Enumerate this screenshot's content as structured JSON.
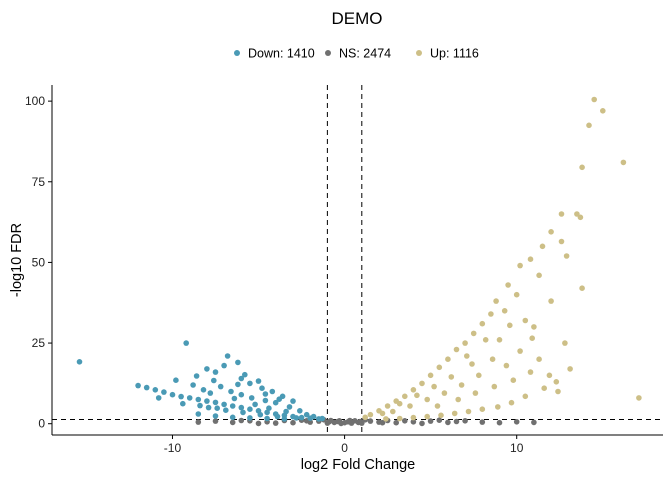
{
  "chart_data": {
    "type": "scatter",
    "title": "DEMO",
    "xlabel": "log2 Fold Change",
    "ylabel": "-log10 FDR",
    "xlim": [
      -17,
      18.5
    ],
    "ylim": [
      -3.5,
      105
    ],
    "x_ticks": [
      -10,
      0,
      10
    ],
    "y_ticks": [
      0,
      25,
      50,
      75,
      100
    ],
    "grid": false,
    "legend_position": "top",
    "thresholds": {
      "vertical": [
        -1,
        1
      ],
      "horizontal": 1.3
    },
    "legend": [
      {
        "label": "Down: 1410",
        "color": "#4a9ab5"
      },
      {
        "label": "NS: 2474",
        "color": "#707070"
      },
      {
        "label": "Up: 1116",
        "color": "#cdbf87"
      }
    ],
    "series": [
      {
        "name": "Down: 1410",
        "color": "#4a9ab5",
        "points": [
          [
            -15.4,
            19.2
          ],
          [
            -12.0,
            11.8
          ],
          [
            -11.5,
            11.2
          ],
          [
            -11.0,
            10.5
          ],
          [
            -10.5,
            9.8
          ],
          [
            -10.0,
            9.0
          ],
          [
            -9.5,
            8.4
          ],
          [
            -9.0,
            8.0
          ],
          [
            -8.5,
            7.5
          ],
          [
            -8.0,
            7.0
          ],
          [
            -7.5,
            6.6
          ],
          [
            -7.0,
            6.0
          ],
          [
            -6.5,
            5.5
          ],
          [
            -6.0,
            5.0
          ],
          [
            -5.5,
            4.5
          ],
          [
            -5.0,
            4.0
          ],
          [
            -4.5,
            3.5
          ],
          [
            -4.0,
            3.0
          ],
          [
            -3.5,
            2.6
          ],
          [
            -3.0,
            2.2
          ],
          [
            -2.5,
            1.9
          ],
          [
            -2.0,
            1.7
          ],
          [
            -1.5,
            1.5
          ],
          [
            -9.2,
            25.0
          ],
          [
            -8.0,
            17.0
          ],
          [
            -7.0,
            18.0
          ],
          [
            -6.8,
            21.0
          ],
          [
            -6.2,
            19.0
          ],
          [
            -7.5,
            16.0
          ],
          [
            -6.0,
            14.0
          ],
          [
            -5.5,
            12.5
          ],
          [
            -4.8,
            11.0
          ],
          [
            -4.2,
            10.0
          ],
          [
            -3.6,
            8.5
          ],
          [
            -3.0,
            7.0
          ],
          [
            -9.8,
            13.5
          ],
          [
            -8.8,
            12.0
          ],
          [
            -8.2,
            10.5
          ],
          [
            -7.8,
            9.5
          ],
          [
            -7.2,
            11.5
          ],
          [
            -6.6,
            10.0
          ],
          [
            -6.0,
            9.0
          ],
          [
            -5.4,
            8.0
          ],
          [
            -4.6,
            7.2
          ],
          [
            -4.0,
            6.5
          ],
          [
            -3.2,
            5.2
          ],
          [
            -2.6,
            4.0
          ],
          [
            -8.5,
            3.0
          ],
          [
            -7.5,
            2.4
          ],
          [
            -6.5,
            2.0
          ],
          [
            -5.5,
            1.8
          ],
          [
            -4.5,
            1.6
          ],
          [
            -3.5,
            1.5
          ],
          [
            -7.9,
            5.0
          ],
          [
            -6.9,
            4.2
          ],
          [
            -5.9,
            3.5
          ],
          [
            -4.9,
            2.8
          ],
          [
            -3.9,
            2.2
          ],
          [
            -2.8,
            1.8
          ],
          [
            -10.8,
            8.0
          ],
          [
            -9.4,
            6.2
          ],
          [
            -8.4,
            5.6
          ],
          [
            -7.4,
            4.8
          ],
          [
            -6.4,
            7.8
          ],
          [
            -5.2,
            6.0
          ],
          [
            -4.4,
            4.8
          ],
          [
            -3.4,
            3.8
          ],
          [
            -2.2,
            2.8
          ],
          [
            -1.8,
            2.2
          ],
          [
            -1.3,
            1.6
          ],
          [
            -6.2,
            12.2
          ],
          [
            -5.8,
            15.2
          ],
          [
            -5.0,
            13.2
          ],
          [
            -4.6,
            9.2
          ],
          [
            -3.8,
            7.6
          ],
          [
            -7.6,
            13.4
          ],
          [
            -8.6,
            14.8
          ]
        ]
      },
      {
        "name": "NS: 2474",
        "color": "#707070",
        "points": [
          [
            -8.5,
            0.5
          ],
          [
            -7.5,
            0.8
          ],
          [
            -6.5,
            0.4
          ],
          [
            -5.5,
            0.9
          ],
          [
            -4.5,
            0.6
          ],
          [
            -3.5,
            1.0
          ],
          [
            -3.0,
            0.3
          ],
          [
            -2.5,
            1.1
          ],
          [
            -2.0,
            0.5
          ],
          [
            -1.5,
            0.8
          ],
          [
            -1.0,
            0.2
          ],
          [
            -0.8,
            1.0
          ],
          [
            -0.6,
            0.4
          ],
          [
            -0.4,
            0.7
          ],
          [
            -0.2,
            0.1
          ],
          [
            0.0,
            0.3
          ],
          [
            0.2,
            0.6
          ],
          [
            0.4,
            0.2
          ],
          [
            0.6,
            0.9
          ],
          [
            0.8,
            0.4
          ],
          [
            1.0,
            0.2
          ],
          [
            1.5,
            0.8
          ],
          [
            2.0,
            0.5
          ],
          [
            2.5,
            1.0
          ],
          [
            3.0,
            0.3
          ],
          [
            3.5,
            0.9
          ],
          [
            4.0,
            0.6
          ],
          [
            5.0,
            0.8
          ],
          [
            6.0,
            0.4
          ],
          [
            7.0,
            0.9
          ],
          [
            8.0,
            0.5
          ],
          [
            9.0,
            0.3
          ],
          [
            10.0,
            0.6
          ],
          [
            11.0,
            0.4
          ],
          [
            -1.2,
            1.2
          ],
          [
            1.2,
            1.2
          ],
          [
            -0.9,
            0.6
          ],
          [
            0.9,
            0.7
          ],
          [
            -0.3,
            0.9
          ],
          [
            0.3,
            1.0
          ],
          [
            -2.2,
            0.9
          ],
          [
            2.2,
            0.3
          ],
          [
            -4.0,
            0.2
          ],
          [
            4.5,
            0.1
          ],
          [
            -5.0,
            0.1
          ],
          [
            5.5,
            1.1
          ],
          [
            -6.0,
            1.0
          ],
          [
            6.5,
            0.7
          ]
        ]
      },
      {
        "name": "Up: 1116",
        "color": "#cdbf87",
        "points": [
          [
            14.5,
            100.5
          ],
          [
            15.0,
            97.0
          ],
          [
            14.2,
            92.5
          ],
          [
            13.8,
            79.5
          ],
          [
            16.2,
            81.0
          ],
          [
            13.5,
            65.0
          ],
          [
            12.6,
            65.0
          ],
          [
            13.7,
            64.0
          ],
          [
            12.0,
            59.5
          ],
          [
            12.6,
            56.5
          ],
          [
            11.5,
            55.0
          ],
          [
            10.8,
            51.0
          ],
          [
            12.9,
            52.0
          ],
          [
            10.2,
            49.0
          ],
          [
            11.3,
            46.0
          ],
          [
            13.8,
            42.0
          ],
          [
            12.0,
            38.0
          ],
          [
            9.5,
            43.0
          ],
          [
            10.0,
            40.0
          ],
          [
            8.8,
            38.0
          ],
          [
            9.3,
            35.0
          ],
          [
            11.0,
            30.0
          ],
          [
            10.5,
            32.0
          ],
          [
            8.5,
            34.0
          ],
          [
            8.0,
            31.0
          ],
          [
            7.5,
            28.0
          ],
          [
            7.0,
            25.0
          ],
          [
            12.8,
            25.0
          ],
          [
            6.5,
            23.0
          ],
          [
            6.0,
            20.0
          ],
          [
            5.5,
            17.5
          ],
          [
            5.0,
            15.0
          ],
          [
            4.5,
            12.5
          ],
          [
            4.0,
            10.5
          ],
          [
            3.5,
            8.5
          ],
          [
            3.0,
            7.0
          ],
          [
            2.5,
            5.5
          ],
          [
            2.0,
            4.0
          ],
          [
            1.5,
            2.8
          ],
          [
            1.2,
            2.0
          ],
          [
            9.0,
            26.0
          ],
          [
            10.2,
            22.5
          ],
          [
            11.3,
            20.0
          ],
          [
            13.1,
            17.0
          ],
          [
            12.3,
            13.0
          ],
          [
            11.6,
            11.0
          ],
          [
            10.5,
            8.5
          ],
          [
            9.7,
            6.5
          ],
          [
            8.9,
            5.2
          ],
          [
            8.0,
            4.5
          ],
          [
            7.2,
            3.8
          ],
          [
            6.4,
            3.2
          ],
          [
            5.6,
            2.6
          ],
          [
            4.8,
            2.2
          ],
          [
            4.0,
            1.9
          ],
          [
            3.2,
            1.6
          ],
          [
            2.4,
            1.5
          ],
          [
            17.1,
            8.0
          ],
          [
            7.8,
            15.0
          ],
          [
            6.8,
            12.0
          ],
          [
            5.8,
            9.5
          ],
          [
            4.8,
            7.5
          ],
          [
            3.8,
            5.5
          ],
          [
            2.8,
            3.8
          ],
          [
            8.6,
            20.0
          ],
          [
            9.4,
            18.0
          ],
          [
            7.4,
            18.5
          ],
          [
            6.2,
            14.5
          ],
          [
            5.2,
            11.5
          ],
          [
            4.2,
            8.8
          ],
          [
            3.2,
            6.2
          ],
          [
            2.2,
            3.2
          ],
          [
            10.8,
            16.0
          ],
          [
            9.8,
            13.5
          ],
          [
            8.7,
            11.5
          ],
          [
            7.6,
            9.5
          ],
          [
            6.6,
            7.5
          ],
          [
            5.4,
            5.5
          ],
          [
            11.9,
            15.0
          ],
          [
            12.4,
            10.0
          ],
          [
            10.9,
            26.5
          ],
          [
            9.6,
            30.5
          ],
          [
            8.2,
            26.0
          ],
          [
            7.1,
            21.0
          ]
        ]
      }
    ]
  }
}
